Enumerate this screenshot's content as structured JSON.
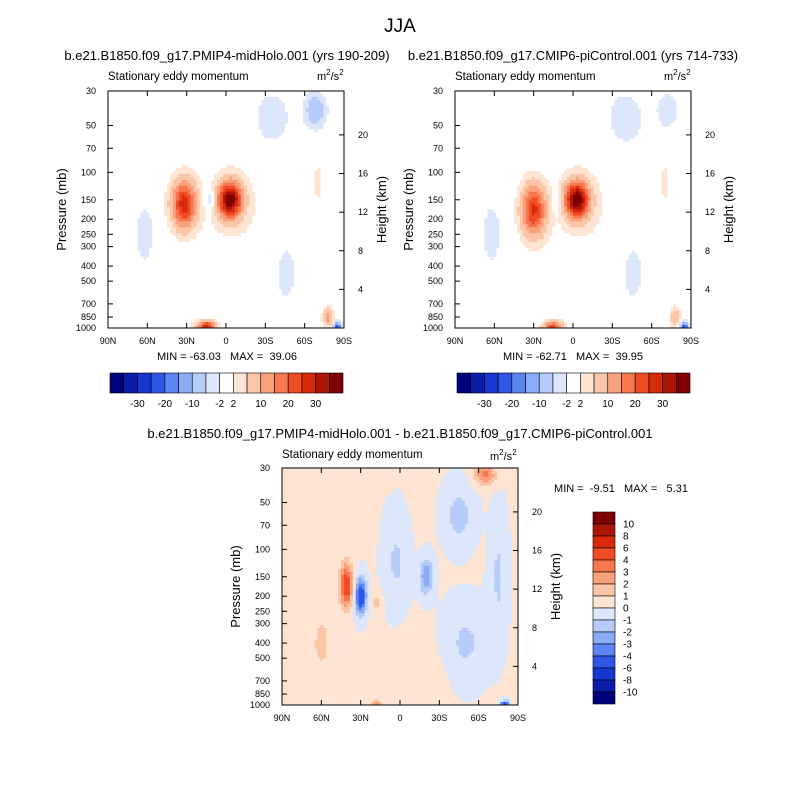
{
  "page": {
    "title": "JJA"
  },
  "chart_data": [
    {
      "type": "heatmap",
      "id": "panel-left",
      "title": "b.e21.B1850.f09_g17.PMIP4-midHolo.001 (yrs 190-209)",
      "subtitle": "Stationary eddy momentum",
      "units": "m²/s²",
      "units_base": "m",
      "units_sup1": "2",
      "units_mid": "/s",
      "units_sup2": "2",
      "xlabel": "",
      "ylabel": "Pressure (mb)",
      "ylabel_right": "Height (km)",
      "x_ticks": [
        "90N",
        "60N",
        "30N",
        "0",
        "30S",
        "60S",
        "90S"
      ],
      "x_values": [
        90,
        60,
        30,
        0,
        -30,
        -60,
        -90
      ],
      "y_ticks": [
        "30",
        "50",
        "70",
        "100",
        "150",
        "200",
        "250",
        "300",
        "400",
        "500",
        "700",
        "850",
        "1000"
      ],
      "y_values": [
        30,
        50,
        70,
        100,
        150,
        200,
        250,
        300,
        400,
        500,
        700,
        850,
        1000
      ],
      "height_ticks": [
        "4",
        "8",
        "12",
        "16",
        "20"
      ],
      "height_values": [
        4,
        8,
        12,
        16,
        20
      ],
      "ylim": [
        1000,
        30
      ],
      "xlim": [
        90,
        -90
      ],
      "min_max": "MIN = -63.03   MAX =  39.06",
      "features": [
        {
          "lat": 32,
          "p": 160,
          "lat_w": 9,
          "p_w": 0.34,
          "amp": 28
        },
        {
          "lat": -3,
          "p": 150,
          "lat_w": 9,
          "p_w": 0.26,
          "amp": 38
        },
        {
          "lat": 12,
          "p": 150,
          "lat_w": 4,
          "p_w": 0.18,
          "amp": -6
        },
        {
          "lat": 62,
          "p": 250,
          "lat_w": 7,
          "p_w": 0.45,
          "amp": -4
        },
        {
          "lat": -10,
          "p": 180,
          "lat_w": 35,
          "p_w": 0.9,
          "amp": 2
        },
        {
          "lat": -35,
          "p": 45,
          "lat_w": 12,
          "p_w": 0.35,
          "amp": -5
        },
        {
          "lat": -68,
          "p": 40,
          "lat_w": 8,
          "p_w": 0.25,
          "amp": -9
        },
        {
          "lat": -70,
          "p": 120,
          "lat_w": 6,
          "p_w": 0.45,
          "amp": 3
        },
        {
          "lat": -45,
          "p": 450,
          "lat_w": 6,
          "p_w": 0.35,
          "amp": -3
        },
        {
          "lat": 15,
          "p": 980,
          "lat_w": 7,
          "p_w": 0.08,
          "amp": 28
        },
        {
          "lat": -78,
          "p": 850,
          "lat_w": 4,
          "p_w": 0.14,
          "amp": 12
        },
        {
          "lat": -85,
          "p": 990,
          "lat_w": 3,
          "p_w": 0.07,
          "amp": -25
        },
        {
          "lat": 45,
          "p": 700,
          "lat_w": 20,
          "p_w": 0.35,
          "amp": 1.5
        },
        {
          "lat": 78,
          "p": 60,
          "lat_w": 10,
          "p_w": 0.6,
          "amp": 1.8
        },
        {
          "lat": -55,
          "p": 300,
          "lat_w": 20,
          "p_w": 1.2,
          "amp": -1.5
        }
      ]
    },
    {
      "type": "heatmap",
      "id": "panel-right",
      "title": "b.e21.B1850.f09_g17.CMIP6-piControl.001 (yrs 714-733)",
      "subtitle": "Stationary eddy momentum",
      "units": "m²/s²",
      "units_base": "m",
      "units_sup1": "2",
      "units_mid": "/s",
      "units_sup2": "2",
      "xlabel": "",
      "ylabel": "Pressure (mb)",
      "ylabel_right": "Height (km)",
      "x_ticks": [
        "90N",
        "60N",
        "30N",
        "0",
        "30S",
        "60S",
        "90S"
      ],
      "x_values": [
        90,
        60,
        30,
        0,
        -30,
        -60,
        -90
      ],
      "y_ticks": [
        "30",
        "50",
        "70",
        "100",
        "150",
        "200",
        "250",
        "300",
        "400",
        "500",
        "700",
        "850",
        "1000"
      ],
      "y_values": [
        30,
        50,
        70,
        100,
        150,
        200,
        250,
        300,
        400,
        500,
        700,
        850,
        1000
      ],
      "height_ticks": [
        "4",
        "8",
        "12",
        "16",
        "20"
      ],
      "height_values": [
        4,
        8,
        12,
        16,
        20
      ],
      "ylim": [
        1000,
        30
      ],
      "xlim": [
        90,
        -90
      ],
      "min_max": "MIN = -62.71   MAX =  39.95",
      "features": [
        {
          "lat": 30,
          "p": 175,
          "lat_w": 9,
          "p_w": 0.36,
          "amp": 26
        },
        {
          "lat": -3,
          "p": 150,
          "lat_w": 9,
          "p_w": 0.26,
          "amp": 39
        },
        {
          "lat": 12,
          "p": 150,
          "lat_w": 4,
          "p_w": 0.18,
          "amp": -5
        },
        {
          "lat": 62,
          "p": 250,
          "lat_w": 7,
          "p_w": 0.45,
          "amp": -4
        },
        {
          "lat": -10,
          "p": 180,
          "lat_w": 35,
          "p_w": 0.9,
          "amp": 2
        },
        {
          "lat": -40,
          "p": 45,
          "lat_w": 12,
          "p_w": 0.35,
          "amp": -5
        },
        {
          "lat": -72,
          "p": 40,
          "lat_w": 8,
          "p_w": 0.25,
          "amp": -5
        },
        {
          "lat": -70,
          "p": 120,
          "lat_w": 6,
          "p_w": 0.45,
          "amp": 3
        },
        {
          "lat": -45,
          "p": 450,
          "lat_w": 6,
          "p_w": 0.35,
          "amp": -3
        },
        {
          "lat": 15,
          "p": 980,
          "lat_w": 7,
          "p_w": 0.08,
          "amp": 22
        },
        {
          "lat": -78,
          "p": 850,
          "lat_w": 4,
          "p_w": 0.14,
          "amp": 10
        },
        {
          "lat": -85,
          "p": 990,
          "lat_w": 3,
          "p_w": 0.07,
          "amp": -25
        },
        {
          "lat": 45,
          "p": 700,
          "lat_w": 20,
          "p_w": 0.35,
          "amp": 1.5
        },
        {
          "lat": 82,
          "p": 50,
          "lat_w": 8,
          "p_w": 0.6,
          "amp": -1.5
        },
        {
          "lat": -55,
          "p": 300,
          "lat_w": 20,
          "p_w": 1.2,
          "amp": -1.5
        }
      ]
    },
    {
      "type": "heatmap",
      "id": "panel-diff",
      "title": "b.e21.B1850.f09_g17.PMIP4-midHolo.001 - b.e21.B1850.f09_g17.CMIP6-piControl.001",
      "subtitle": "Stationary eddy momentum",
      "units": "m²/s²",
      "units_base": "m",
      "units_sup1": "2",
      "units_mid": "/s",
      "units_sup2": "2",
      "xlabel": "",
      "ylabel": "Pressure (mb)",
      "ylabel_right": "Height (km)",
      "x_ticks": [
        "90N",
        "60N",
        "30N",
        "0",
        "30S",
        "60S",
        "90S"
      ],
      "x_values": [
        90,
        60,
        30,
        0,
        -30,
        -60,
        -90
      ],
      "y_ticks": [
        "30",
        "50",
        "70",
        "100",
        "150",
        "200",
        "250",
        "300",
        "400",
        "500",
        "700",
        "850",
        "1000"
      ],
      "y_values": [
        30,
        50,
        70,
        100,
        150,
        200,
        250,
        300,
        400,
        500,
        700,
        850,
        1000
      ],
      "height_ticks": [
        "4",
        "8",
        "12",
        "16",
        "20"
      ],
      "height_values": [
        4,
        8,
        12,
        16,
        20
      ],
      "ylim": [
        1000,
        30
      ],
      "xlim": [
        90,
        -90
      ],
      "min_max": "MIN =  -9.51   MAX =   5.31",
      "features": [
        {
          "lat": 41,
          "p": 170,
          "lat_w": 5,
          "p_w": 0.32,
          "amp": 5.3
        },
        {
          "lat": 30,
          "p": 200,
          "lat_w": 4,
          "p_w": 0.25,
          "amp": -6
        },
        {
          "lat": 3,
          "p": 120,
          "lat_w": 8,
          "p_w": 0.6,
          "amp": -1.2
        },
        {
          "lat": -20,
          "p": 150,
          "lat_w": 5,
          "p_w": 0.25,
          "amp": -3
        },
        {
          "lat": 18,
          "p": 220,
          "lat_w": 4,
          "p_w": 0.15,
          "amp": 1.5
        },
        {
          "lat": -45,
          "p": 60,
          "lat_w": 10,
          "p_w": 0.4,
          "amp": -1.5
        },
        {
          "lat": -65,
          "p": 33,
          "lat_w": 8,
          "p_w": 0.15,
          "amp": 3.5
        },
        {
          "lat": -50,
          "p": 400,
          "lat_w": 15,
          "p_w": 0.5,
          "amp": -1.2
        },
        {
          "lat": 60,
          "p": 400,
          "lat_w": 10,
          "p_w": 0.6,
          "amp": 1.2
        },
        {
          "lat": 18,
          "p": 980,
          "lat_w": 4,
          "p_w": 0.06,
          "amp": 2.5
        },
        {
          "lat": -10,
          "p": 700,
          "lat_w": 20,
          "p_w": 0.5,
          "amp": 0.8
        },
        {
          "lat": -75,
          "p": 150,
          "lat_w": 6,
          "p_w": 0.8,
          "amp": -1.2
        },
        {
          "lat": 80,
          "p": 200,
          "lat_w": 6,
          "p_w": 1.0,
          "amp": 0.7
        },
        {
          "lat": -80,
          "p": 990,
          "lat_w": 3,
          "p_w": 0.05,
          "amp": -6
        }
      ]
    }
  ],
  "colorbar_abs": {
    "labels": [
      "-30",
      "-20",
      "-10",
      "-2",
      "2",
      "10",
      "20",
      "30"
    ],
    "levels": [
      -35,
      -30,
      -25,
      -20,
      -15,
      -10,
      -5,
      -2,
      2,
      5,
      10,
      15,
      20,
      25,
      30,
      35
    ],
    "colors": [
      "#00007f",
      "#0a1ca8",
      "#1738d0",
      "#2e57e8",
      "#5b84f2",
      "#8aabf6",
      "#b6cbf9",
      "#dce7fb",
      "#ffffff",
      "#fde4d3",
      "#fbc6a8",
      "#f9a07c",
      "#f7784f",
      "#f04c24",
      "#d92a0c",
      "#ac1404",
      "#7f0000"
    ]
  },
  "colorbar_diff": {
    "labels": [
      "10",
      "8",
      "6",
      "4",
      "3",
      "2",
      "1",
      "0",
      "-1",
      "-2",
      "-3",
      "-4",
      "-6",
      "-8",
      "-10"
    ],
    "levels": [
      -10,
      -8,
      -6,
      -4,
      -3,
      -2,
      -1,
      0,
      1,
      2,
      3,
      4,
      6,
      8,
      10
    ],
    "colors": [
      "#00007f",
      "#0a1ca8",
      "#1738d0",
      "#2e57e8",
      "#5b84f2",
      "#8aabf6",
      "#b6cbf9",
      "#dce7fb",
      "#fde4d3",
      "#fbc6a8",
      "#f9a07c",
      "#f7784f",
      "#f04c24",
      "#d92a0c",
      "#ac1404",
      "#7f0000"
    ]
  }
}
